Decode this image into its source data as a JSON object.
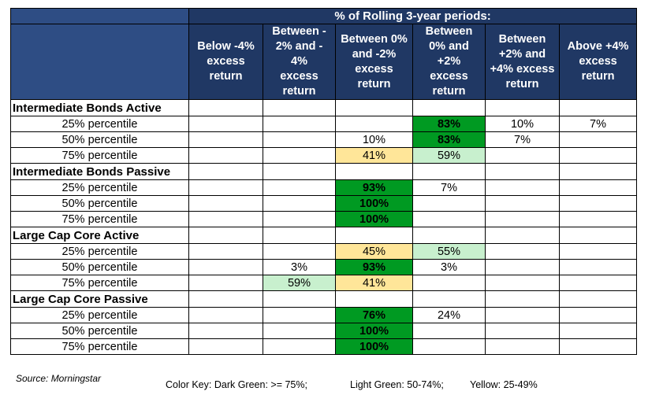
{
  "chart_data": {
    "type": "table",
    "title": "% of Rolling 3-year periods:",
    "columns": [
      "Below -4% excess return",
      "Between -2% and -4% excess return",
      "Between 0% and -2% excess return",
      "Between 0% and +2% excess return",
      "Between +2% and +4% excess return",
      "Above +4% excess return"
    ],
    "column_lines": [
      [
        "Below -4%",
        "excess",
        "return"
      ],
      [
        "Between -",
        "2% and -",
        "4%",
        "excess",
        "return"
      ],
      [
        "Between 0%",
        "and -2%",
        "excess",
        "return"
      ],
      [
        "Between",
        "0% and",
        "+2%",
        "excess",
        "return"
      ],
      [
        "Between",
        "+2% and",
        "+4% excess",
        "return"
      ],
      [
        "Above +4%",
        "excess",
        "return"
      ]
    ],
    "groups": [
      {
        "name": "Intermediate Bonds Active",
        "rows": [
          {
            "label": "25% percentile",
            "values": [
              "",
              "",
              "",
              "83%",
              "10%",
              "7%"
            ]
          },
          {
            "label": "50% percentile",
            "values": [
              "",
              "",
              "10%",
              "83%",
              "7%",
              ""
            ]
          },
          {
            "label": "75% percentile",
            "values": [
              "",
              "",
              "41%",
              "59%",
              "",
              ""
            ]
          }
        ]
      },
      {
        "name": "Intermediate Bonds Passive",
        "rows": [
          {
            "label": "25% percentile",
            "values": [
              "",
              "",
              "93%",
              "7%",
              "",
              ""
            ]
          },
          {
            "label": "50% percentile",
            "values": [
              "",
              "",
              "100%",
              "",
              "",
              ""
            ]
          },
          {
            "label": "75% percentile",
            "values": [
              "",
              "",
              "100%",
              "",
              "",
              ""
            ]
          }
        ]
      },
      {
        "name": "Large Cap Core Active",
        "rows": [
          {
            "label": "25% percentile",
            "values": [
              "",
              "",
              "45%",
              "55%",
              "",
              ""
            ]
          },
          {
            "label": "50% percentile",
            "values": [
              "",
              "3%",
              "93%",
              "3%",
              "",
              ""
            ]
          },
          {
            "label": "75% percentile",
            "values": [
              "",
              "59%",
              "41%",
              "",
              "",
              ""
            ]
          }
        ]
      },
      {
        "name": "Large Cap Core Passive",
        "rows": [
          {
            "label": "25% percentile",
            "values": [
              "",
              "",
              "76%",
              "24%",
              "",
              ""
            ]
          },
          {
            "label": "50% percentile",
            "values": [
              "",
              "",
              "100%",
              "",
              "",
              ""
            ]
          },
          {
            "label": "75% percentile",
            "values": [
              "",
              "",
              "100%",
              "",
              "",
              ""
            ]
          }
        ]
      }
    ],
    "colors": {
      "header_bg": "#203864",
      "dark_green": "#009A22",
      "light_green": "#C8F0CE",
      "yellow": "#FFE699"
    }
  },
  "source": "Source: Morningstar",
  "color_key": {
    "prefix": "Color Key:",
    "dark_green": "Dark Green: >= 75%;",
    "light_green": "Light Green:  50-74%;",
    "yellow": "Yellow:  25-49%"
  }
}
